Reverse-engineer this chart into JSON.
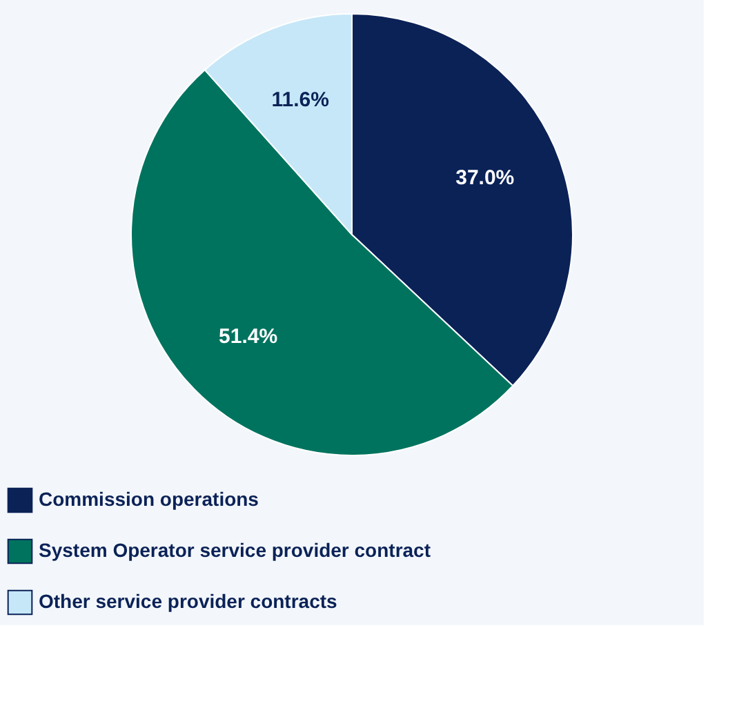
{
  "chart_data": {
    "type": "pie",
    "categories": [
      "Commission operations",
      "System Operator service provider contract",
      "Other service provider contracts"
    ],
    "values": [
      37.0,
      51.4,
      11.6
    ],
    "colors": [
      "#0b2257",
      "#00735f",
      "#c6e7f8"
    ],
    "value_labels": [
      "37.0%",
      "51.4%",
      "11.6%"
    ],
    "legend": "bottom"
  }
}
